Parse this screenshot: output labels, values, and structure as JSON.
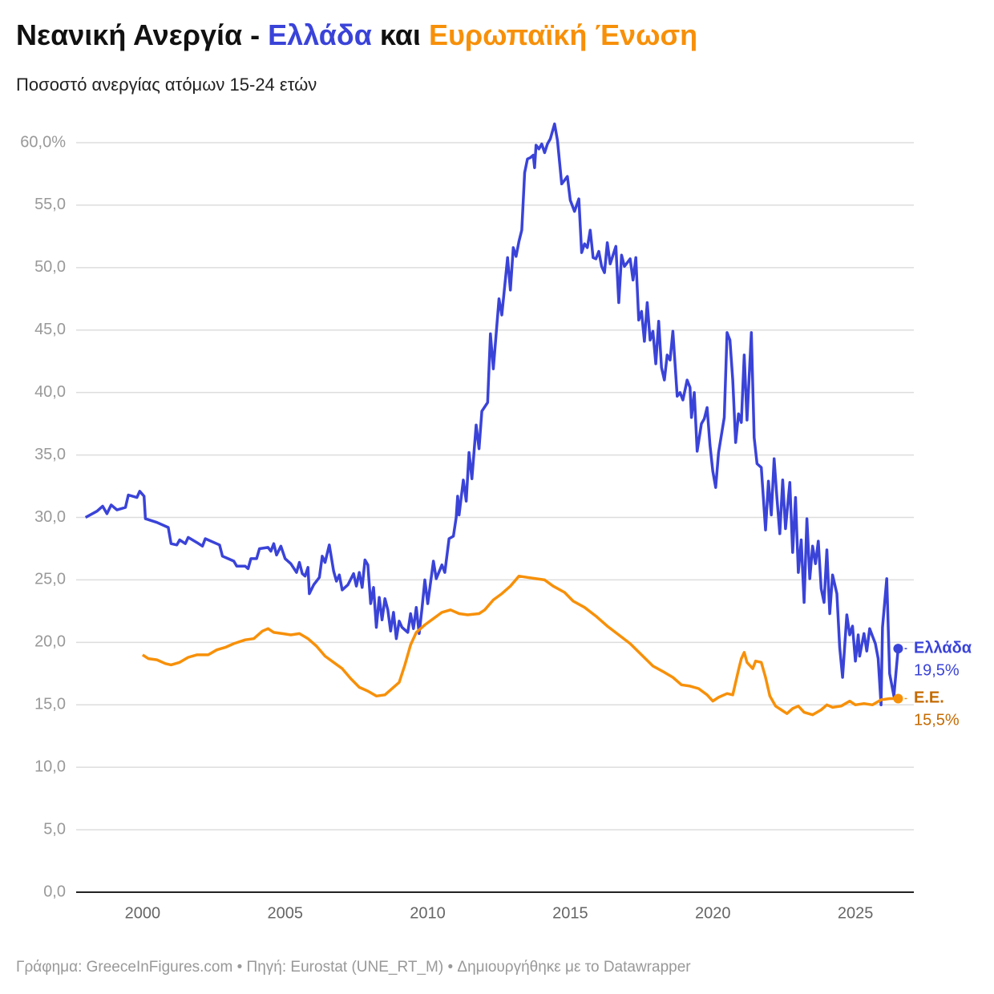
{
  "chart_data": {
    "type": "line",
    "title": [
      "Νεανική Ανεργία -",
      "Ελλάδα",
      "και",
      "Ευρωπαϊκή Ένωση"
    ],
    "subtitle": "Ποσοστό ανεργίας ατόμων 15-24 ετών",
    "footer": "Γράφημα: GreeceInFigures.com • Πηγή: Eurostat (UNE_RT_M) • Δημιουργήθηκε με το Datawrapper",
    "xlim": [
      1997.67,
      2027.05
    ],
    "xticks": [
      2000,
      2005,
      2010,
      2015,
      2020,
      2025
    ],
    "ylim": [
      0,
      60
    ],
    "yticks": [
      {
        "value": 0,
        "label": "0,0"
      },
      {
        "value": 5,
        "label": "5,0"
      },
      {
        "value": 10,
        "label": "10,0"
      },
      {
        "value": 15,
        "label": "15,0"
      },
      {
        "value": 20,
        "label": "20,0"
      },
      {
        "value": 25,
        "label": "25,0"
      },
      {
        "value": 30,
        "label": "30,0"
      },
      {
        "value": 35,
        "label": "35,0"
      },
      {
        "value": 40,
        "label": "40,0"
      },
      {
        "value": 45,
        "label": "45,0"
      },
      {
        "value": 50,
        "label": "50,0"
      },
      {
        "value": 55,
        "label": "55,0"
      },
      {
        "value": 60,
        "label": "60,0%"
      }
    ],
    "grid": true,
    "series": [
      {
        "name": "Ελλάδα",
        "color": "#3a43d8",
        "label_color": "#3a43d8",
        "last_label": "19,5%",
        "x": [
          1998.0,
          1998.4,
          1998.6,
          1998.75,
          1998.9,
          1999.1,
          1999.4,
          1999.5,
          1999.8,
          1999.9,
          2000.05,
          2000.1,
          2000.5,
          2000.9,
          2001.0,
          2001.2,
          2001.3,
          2001.5,
          2001.6,
          2001.9,
          2002.1,
          2002.2,
          2002.5,
          2002.7,
          2002.8,
          2003.0,
          2003.2,
          2003.3,
          2003.6,
          2003.7,
          2003.8,
          2004.0,
          2004.1,
          2004.4,
          2004.5,
          2004.6,
          2004.7,
          2004.85,
          2005.0,
          2005.2,
          2005.4,
          2005.5,
          2005.6,
          2005.7,
          2005.8,
          2005.85,
          2006.0,
          2006.2,
          2006.3,
          2006.4,
          2006.55,
          2006.7,
          2006.8,
          2006.9,
          2007.0,
          2007.2,
          2007.4,
          2007.5,
          2007.6,
          2007.7,
          2007.8,
          2007.9,
          2008.0,
          2008.1,
          2008.2,
          2008.3,
          2008.4,
          2008.5,
          2008.6,
          2008.7,
          2008.8,
          2008.9,
          2009.0,
          2009.1,
          2009.3,
          2009.4,
          2009.5,
          2009.6,
          2009.7,
          2009.8,
          2009.9,
          2010.0,
          2010.2,
          2010.3,
          2010.5,
          2010.6,
          2010.75,
          2010.9,
          2011.0,
          2011.05,
          2011.1,
          2011.25,
          2011.35,
          2011.45,
          2011.55,
          2011.7,
          2011.8,
          2011.9,
          2012.1,
          2012.2,
          2012.3,
          2012.5,
          2012.6,
          2012.8,
          2012.9,
          2013.0,
          2013.1,
          2013.2,
          2013.3,
          2013.4,
          2013.5,
          2013.6,
          2013.7,
          2013.75,
          2013.8,
          2013.9,
          2014.0,
          2014.1,
          2014.2,
          2014.3,
          2014.45,
          2014.55,
          2014.7,
          2014.8,
          2014.9,
          2015.0,
          2015.15,
          2015.3,
          2015.4,
          2015.5,
          2015.6,
          2015.7,
          2015.8,
          2015.9,
          2016.0,
          2016.1,
          2016.2,
          2016.3,
          2016.4,
          2016.6,
          2016.7,
          2016.8,
          2016.9,
          2017.1,
          2017.2,
          2017.3,
          2017.4,
          2017.5,
          2017.6,
          2017.7,
          2017.8,
          2017.9,
          2018.0,
          2018.1,
          2018.2,
          2018.3,
          2018.4,
          2018.5,
          2018.6,
          2018.75,
          2018.85,
          2018.95,
          2019.1,
          2019.2,
          2019.25,
          2019.35,
          2019.45,
          2019.6,
          2019.7,
          2019.8,
          2019.9,
          2020.0,
          2020.1,
          2020.2,
          2020.4,
          2020.5,
          2020.6,
          2020.7,
          2020.8,
          2020.9,
          2021.0,
          2021.1,
          2021.2,
          2021.35,
          2021.45,
          2021.55,
          2021.7,
          2021.85,
          2021.95,
          2022.05,
          2022.15,
          2022.25,
          2022.35,
          2022.45,
          2022.55,
          2022.7,
          2022.8,
          2022.9,
          2023.0,
          2023.1,
          2023.2,
          2023.3,
          2023.4,
          2023.5,
          2023.6,
          2023.7,
          2023.8,
          2023.9,
          2024.0,
          2024.1,
          2024.2,
          2024.35,
          2024.45,
          2024.55,
          2024.7,
          2024.8,
          2024.9,
          2025.0,
          2025.1,
          2025.15,
          2025.3,
          2025.4,
          2025.5,
          2025.6,
          2025.7,
          2025.8,
          2025.9,
          2025.95,
          2026.1,
          2026.2,
          2026.35,
          2026.5
        ],
        "values": [
          30.0,
          30.5,
          30.9,
          30.3,
          31.0,
          30.6,
          30.8,
          31.8,
          31.6,
          32.1,
          31.7,
          29.9,
          29.6,
          29.2,
          27.9,
          27.8,
          28.2,
          27.9,
          28.4,
          28.0,
          27.7,
          28.3,
          28.0,
          27.8,
          26.9,
          26.7,
          26.5,
          26.1,
          26.1,
          25.9,
          26.7,
          26.7,
          27.5,
          27.6,
          27.3,
          27.9,
          27.0,
          27.7,
          26.7,
          26.3,
          25.6,
          26.4,
          25.5,
          25.3,
          26.0,
          23.9,
          24.6,
          25.2,
          26.9,
          26.4,
          27.8,
          25.7,
          24.9,
          25.4,
          24.2,
          24.6,
          25.5,
          24.5,
          25.6,
          24.4,
          26.6,
          26.2,
          23.1,
          24.4,
          21.2,
          23.6,
          21.8,
          23.5,
          22.6,
          20.9,
          22.4,
          20.3,
          21.7,
          21.2,
          20.8,
          22.3,
          21.1,
          22.8,
          20.7,
          22.7,
          25.0,
          23.1,
          26.5,
          25.1,
          26.2,
          25.6,
          28.3,
          28.5,
          30.0,
          31.7,
          30.2,
          33.0,
          31.3,
          35.2,
          33.1,
          37.4,
          35.5,
          38.5,
          39.2,
          44.7,
          41.9,
          47.5,
          46.2,
          50.8,
          48.2,
          51.6,
          50.9,
          52.1,
          53.0,
          57.6,
          58.7,
          58.8,
          59.0,
          58.0,
          59.8,
          59.5,
          59.9,
          59.2,
          59.9,
          60.3,
          61.5,
          60.2,
          56.7,
          57.0,
          57.3,
          55.4,
          54.5,
          55.5,
          51.2,
          51.9,
          51.6,
          53.0,
          50.8,
          50.7,
          51.3,
          50.1,
          49.6,
          52.0,
          50.3,
          51.7,
          47.2,
          51.0,
          50.1,
          50.7,
          49.0,
          50.8,
          45.8,
          46.5,
          44.1,
          47.2,
          44.2,
          44.9,
          42.3,
          45.7,
          42.0,
          41.0,
          43.0,
          42.6,
          44.9,
          39.7,
          40.0,
          39.4,
          41.0,
          40.4,
          38.0,
          40.0,
          35.3,
          37.5,
          37.9,
          38.8,
          35.8,
          33.7,
          32.4,
          35.2,
          38.0,
          44.8,
          44.2,
          41.0,
          36.0,
          38.3,
          37.6,
          43.0,
          37.8,
          44.8,
          36.4,
          34.3,
          34.0,
          29.0,
          32.9,
          30.2,
          34.7,
          31.5,
          28.7,
          33.0,
          29.1,
          32.8,
          27.2,
          31.6,
          25.6,
          28.2,
          23.2,
          29.9,
          25.1,
          27.7,
          26.3,
          28.1,
          24.3,
          23.2,
          27.4,
          22.3,
          25.4,
          23.9,
          19.6,
          17.2,
          22.2,
          20.6,
          21.3,
          18.5,
          20.6,
          18.9,
          20.7,
          19.3,
          21.1,
          20.5,
          19.9,
          18.7,
          15.0,
          21.2,
          25.1,
          17.5,
          15.7,
          19.5
        ]
      },
      {
        "name": "Ε.Ε.",
        "color": "#f79009",
        "label_color": "#c46a00",
        "last_label": "15,5%",
        "x": [
          2000.0,
          2000.2,
          2000.5,
          2000.8,
          2001.0,
          2001.3,
          2001.6,
          2001.9,
          2002.3,
          2002.6,
          2002.9,
          2003.2,
          2003.6,
          2003.9,
          2004.2,
          2004.4,
          2004.6,
          2004.9,
          2005.2,
          2005.5,
          2005.8,
          2006.1,
          2006.4,
          2006.7,
          2007.0,
          2007.3,
          2007.6,
          2007.9,
          2008.2,
          2008.5,
          2008.8,
          2009.0,
          2009.2,
          2009.4,
          2009.6,
          2009.9,
          2010.2,
          2010.5,
          2010.8,
          2011.1,
          2011.4,
          2011.8,
          2012.0,
          2012.3,
          2012.6,
          2012.9,
          2013.2,
          2013.5,
          2013.8,
          2014.1,
          2014.4,
          2014.8,
          2015.1,
          2015.5,
          2015.9,
          2016.3,
          2016.7,
          2017.1,
          2017.5,
          2017.9,
          2018.3,
          2018.6,
          2018.9,
          2019.2,
          2019.5,
          2019.8,
          2020.0,
          2020.2,
          2020.5,
          2020.7,
          2020.9,
          2021.0,
          2021.1,
          2021.2,
          2021.4,
          2021.5,
          2021.7,
          2021.85,
          2022.0,
          2022.2,
          2022.4,
          2022.6,
          2022.8,
          2023.0,
          2023.2,
          2023.5,
          2023.8,
          2024.0,
          2024.2,
          2024.5,
          2024.8,
          2025.0,
          2025.3,
          2025.6,
          2025.9,
          2026.2,
          2026.5
        ],
        "values": [
          19.0,
          18.7,
          18.6,
          18.3,
          18.2,
          18.4,
          18.8,
          19.0,
          19.0,
          19.4,
          19.6,
          19.9,
          20.2,
          20.3,
          20.9,
          21.1,
          20.8,
          20.7,
          20.6,
          20.7,
          20.3,
          19.7,
          18.9,
          18.4,
          17.9,
          17.1,
          16.4,
          16.1,
          15.7,
          15.8,
          16.4,
          16.8,
          18.2,
          19.8,
          20.8,
          21.4,
          21.9,
          22.4,
          22.6,
          22.3,
          22.2,
          22.3,
          22.6,
          23.4,
          23.9,
          24.5,
          25.3,
          25.2,
          25.1,
          25.0,
          24.5,
          24.0,
          23.3,
          22.8,
          22.1,
          21.3,
          20.6,
          19.9,
          19.0,
          18.1,
          17.6,
          17.2,
          16.6,
          16.5,
          16.3,
          15.8,
          15.3,
          15.6,
          15.9,
          15.8,
          17.8,
          18.7,
          19.2,
          18.4,
          17.9,
          18.5,
          18.4,
          17.2,
          15.7,
          14.9,
          14.6,
          14.3,
          14.7,
          14.9,
          14.4,
          14.2,
          14.6,
          15.0,
          14.8,
          14.9,
          15.3,
          15.0,
          15.1,
          15.0,
          15.4,
          15.5,
          15.5
        ]
      }
    ]
  }
}
